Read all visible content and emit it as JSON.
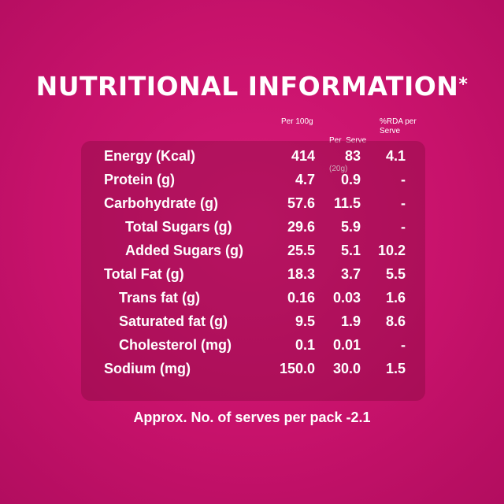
{
  "title": "NUTRITIONAL INFORMATION",
  "title_mark": "*",
  "columns": {
    "per100": "Per 100g",
    "perServe_line1": "Per  Serve",
    "perServe_line2": "(20g)",
    "rda_line1": "%RDA per",
    "rda_line2": "Serve"
  },
  "rows": [
    {
      "label": "Energy (Kcal)",
      "per100": "414",
      "perServe": "83",
      "rda": "4.1"
    },
    {
      "label": "Protein (g)",
      "per100": "4.7",
      "perServe": "0.9",
      "rda": "-"
    },
    {
      "label": "Carbohydrate (g)",
      "per100": "57.6",
      "perServe": "11.5",
      "rda": "-"
    },
    {
      "label": "Total Sugars (g)",
      "per100": "29.6",
      "perServe": "5.9",
      "rda": "-"
    },
    {
      "label": "Added Sugars (g)",
      "per100": "25.5",
      "perServe": "5.1",
      "rda": "10.2"
    },
    {
      "label": "Total Fat (g)",
      "per100": "18.3",
      "perServe": "3.7",
      "rda": "5.5"
    },
    {
      "label": "Trans fat (g)",
      "per100": "0.16",
      "perServe": "0.03",
      "rda": "1.6"
    },
    {
      "label": "Saturated fat (g)",
      "per100": "9.5",
      "perServe": "1.9",
      "rda": "8.6"
    },
    {
      "label": "Cholesterol (mg)",
      "per100": "0.1",
      "perServe": "0.01",
      "rda": "-"
    },
    {
      "label": "Sodium (mg)",
      "per100": "150.0",
      "perServe": "30.0",
      "rda": "1.5"
    }
  ],
  "footer": "Approx. No. of serves per pack -2.1"
}
